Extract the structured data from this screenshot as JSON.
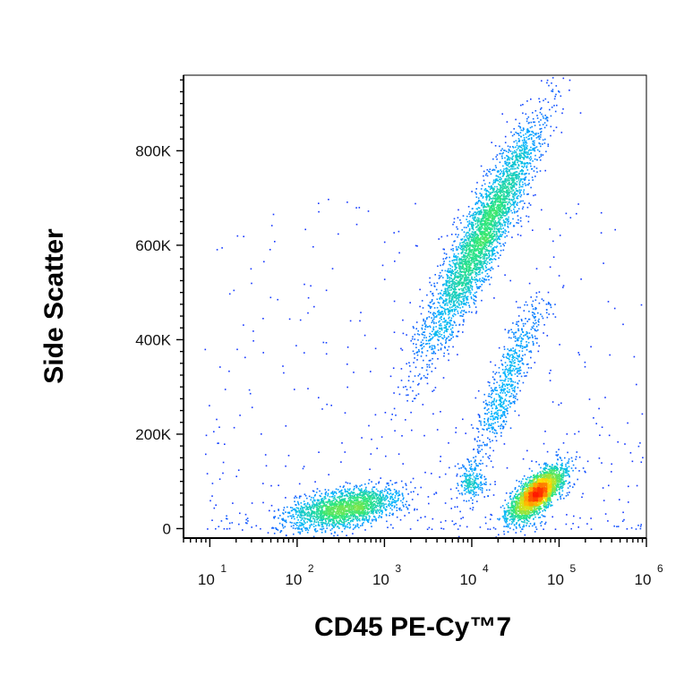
{
  "chart_data": {
    "type": "scatter",
    "title": "",
    "xlabel": "CD45  PE-Cy™7",
    "ylabel": "Side Scatter",
    "x_scale": "log",
    "xlim": [
      5,
      1000000
    ],
    "ylim": [
      -20000,
      960000
    ],
    "x_ticks": [
      {
        "base": "10",
        "exp": "1",
        "value": 10
      },
      {
        "base": "10",
        "exp": "2",
        "value": 100
      },
      {
        "base": "10",
        "exp": "3",
        "value": 1000
      },
      {
        "base": "10",
        "exp": "4",
        "value": 10000
      },
      {
        "base": "10",
        "exp": "5",
        "value": 100000
      },
      {
        "base": "10",
        "exp": "6",
        "value": 1000000
      }
    ],
    "y_ticks": [
      {
        "label": "0",
        "value": 0
      },
      {
        "label": "200K",
        "value": 200000
      },
      {
        "label": "400K",
        "value": 400000
      },
      {
        "label": "600K",
        "value": 600000
      },
      {
        "label": "800K",
        "value": 800000
      }
    ],
    "grid": false,
    "legend": "none",
    "color_scale": "density (blue → cyan → green → yellow → red)",
    "populations": [
      {
        "center_x": 350,
        "center_y": 45000,
        "points": 1900
      },
      {
        "center_x": 13000,
        "center_y": 620000,
        "points": 3600
      },
      {
        "center_x": 25000,
        "center_y": 310000,
        "points": 700
      },
      {
        "center_x": 55000,
        "center_y": 75000,
        "points": 2600
      },
      {
        "center_x": 10000,
        "center_y": 100000,
        "points": 200
      }
    ],
    "colors": {
      "low": "#1a1aff",
      "mid_low": "#00b4ff",
      "mid": "#2fe87a",
      "mid_high": "#ffe000",
      "high": "#ff1a00"
    }
  }
}
